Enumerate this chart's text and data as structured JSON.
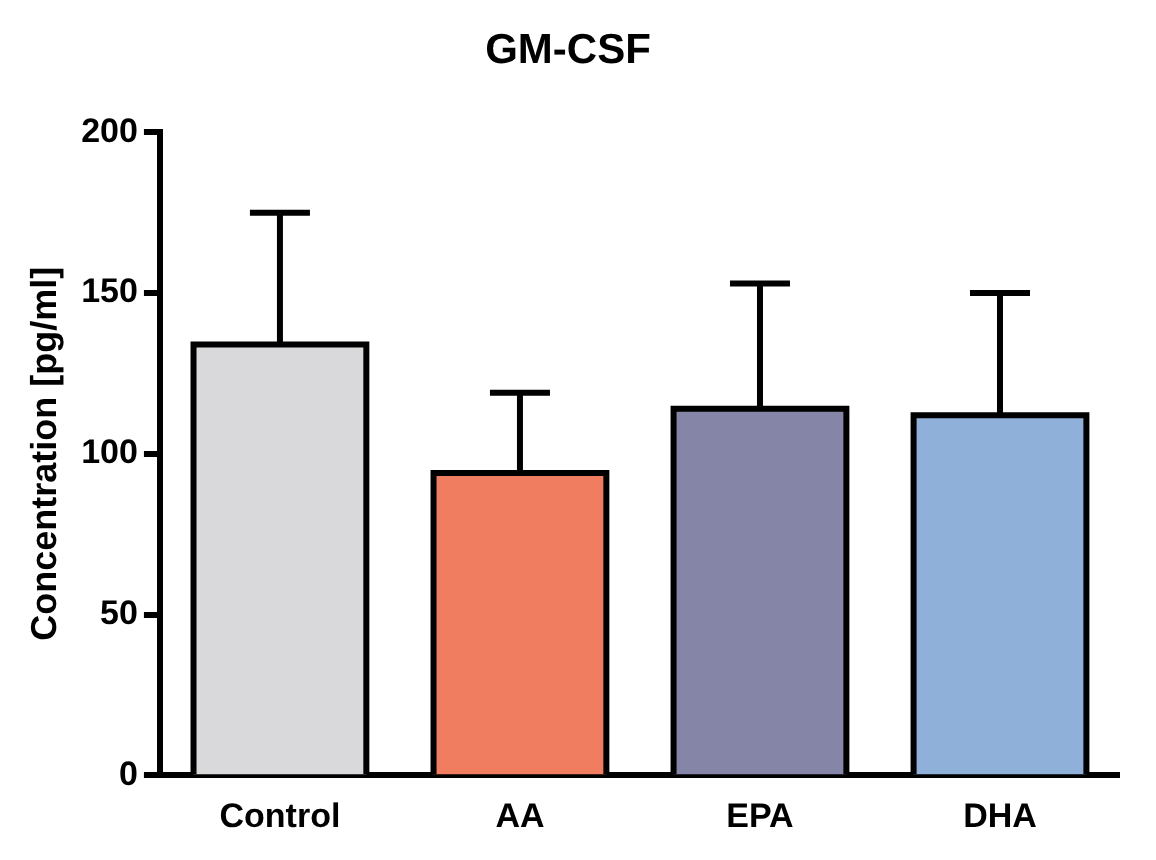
{
  "chart_data": {
    "type": "bar",
    "title": "GM-CSF",
    "ylabel": "Concentration [pg/ml]",
    "categories": [
      "Control",
      "AA",
      "EPA",
      "DHA"
    ],
    "values": [
      134,
      94,
      114,
      112
    ],
    "errors": [
      41,
      25,
      39,
      38
    ],
    "colors": [
      "#d9d9db",
      "#f07d5f",
      "#8585a8",
      "#8fb0d9"
    ],
    "ylim": [
      0,
      200
    ],
    "yticks": [
      0,
      50,
      100,
      150,
      200
    ],
    "grid": false,
    "legend": false
  }
}
